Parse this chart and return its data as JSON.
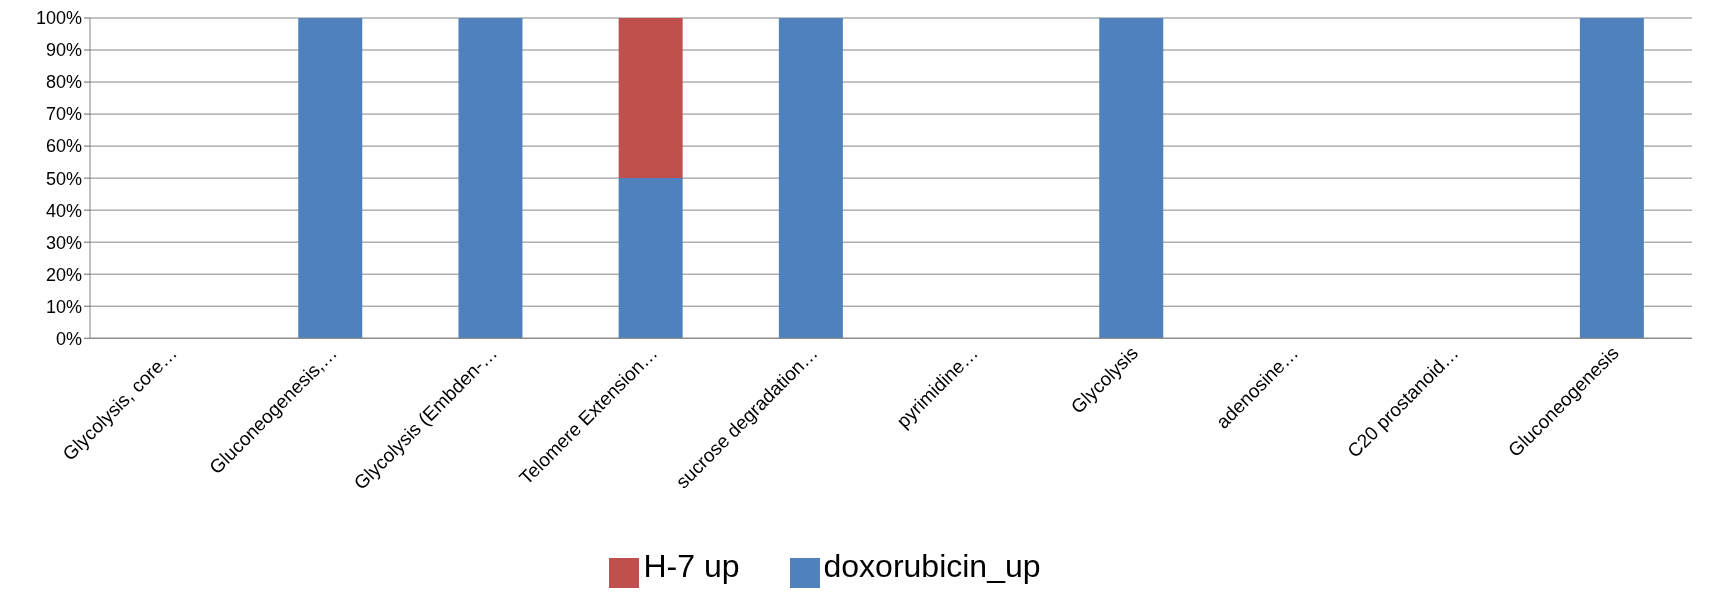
{
  "chart_data": {
    "type": "bar",
    "stacked": true,
    "categories": [
      "Glycolysis, core…",
      "Gluconeogenesis,…",
      "Glycolysis (Embden-…",
      "Telomere Extension…",
      "sucrose degradation…",
      "pyrimidine…",
      "Glycolysis",
      "adenosine…",
      "C20 prostanoid…",
      "Gluconeogenesis"
    ],
    "series": [
      {
        "name": "doxorubicin_up",
        "color": "#4f81bd",
        "values": [
          0,
          100,
          100,
          50,
          100,
          0,
          100,
          0,
          0,
          100
        ]
      },
      {
        "name": "H-7 up",
        "color": "#c0504d",
        "values": [
          0,
          0,
          0,
          50,
          0,
          0,
          0,
          0,
          0,
          0
        ]
      }
    ],
    "ylim": [
      0,
      100
    ],
    "yticks": [
      {
        "value": 0,
        "label": "0%"
      },
      {
        "value": 10,
        "label": "10%"
      },
      {
        "value": 20,
        "label": "20%"
      },
      {
        "value": 30,
        "label": "30%"
      },
      {
        "value": 40,
        "label": "40%"
      },
      {
        "value": 50,
        "label": "50%"
      },
      {
        "value": 60,
        "label": "60%"
      },
      {
        "value": 70,
        "label": "70%"
      },
      {
        "value": 80,
        "label": "80%"
      },
      {
        "value": 90,
        "label": "90%"
      },
      {
        "value": 100,
        "label": "100%"
      }
    ],
    "grid": "y",
    "legend": "bottom"
  }
}
